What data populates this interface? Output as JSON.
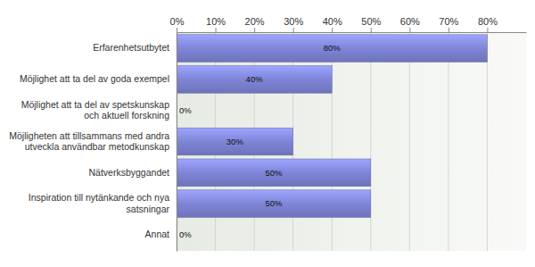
{
  "chart_data": {
    "type": "bar",
    "orientation": "horizontal",
    "categories": [
      "Erfarenhetsutbytet",
      "Möjlighet att ta del av goda exempel",
      "Möjlighet att ta del av spetskunskap och aktuell forskning",
      "Möjligheten att tillsammans med andra utveckla användbar metodkunskap",
      "Nätverksbyggandet",
      "Inspiration till nytänkande och nya satsningar",
      "Annat"
    ],
    "values": [
      80,
      40,
      0,
      30,
      50,
      50,
      0
    ],
    "value_labels": [
      "80%",
      "40%",
      "0%",
      "30%",
      "50%",
      "50%",
      "0%"
    ],
    "color": "#7f85d6",
    "xlim": [
      0,
      90
    ],
    "xticks": [
      {
        "value": 0,
        "label": "0%"
      },
      {
        "value": 10,
        "label": "10%"
      },
      {
        "value": 20,
        "label": "20%"
      },
      {
        "value": 30,
        "label": "30%"
      },
      {
        "value": 40,
        "label": "40%"
      },
      {
        "value": 50,
        "label": "50%"
      },
      {
        "value": 60,
        "label": "60%"
      },
      {
        "value": 70,
        "label": "70%"
      },
      {
        "value": 80,
        "label": "80%"
      }
    ],
    "grid": true,
    "data_labels": true
  }
}
